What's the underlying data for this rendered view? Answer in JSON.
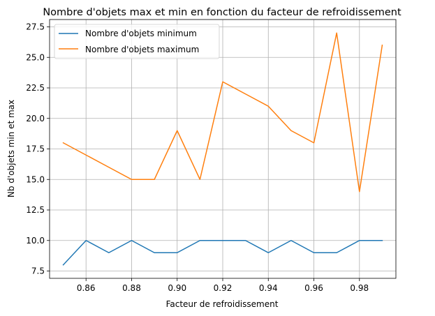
{
  "chart_data": {
    "type": "line",
    "title": "Nombre d'objets max et min en fonction du facteur de refroidissement",
    "xlabel": "Facteur de refroidissement",
    "ylabel": "Nb d'objets min et max",
    "x": [
      0.85,
      0.86,
      0.87,
      0.88,
      0.89,
      0.9,
      0.91,
      0.92,
      0.93,
      0.94,
      0.95,
      0.96,
      0.97,
      0.98,
      0.99
    ],
    "xlim": [
      0.844,
      0.996
    ],
    "ylim": [
      6.9,
      28.1
    ],
    "xticks": [
      0.86,
      0.88,
      0.9,
      0.92,
      0.94,
      0.96,
      0.98
    ],
    "xtick_labels": [
      "0.86",
      "0.88",
      "0.90",
      "0.92",
      "0.94",
      "0.96",
      "0.98"
    ],
    "yticks": [
      7.5,
      10.0,
      12.5,
      15.0,
      17.5,
      20.0,
      22.5,
      25.0,
      27.5
    ],
    "ytick_labels": [
      "7.5",
      "10.0",
      "12.5",
      "15.0",
      "17.5",
      "20.0",
      "22.5",
      "25.0",
      "27.5"
    ],
    "grid": true,
    "legend_position": "top-left",
    "series": [
      {
        "name": "Nombre d'objets minimum",
        "color": "#1f77b4",
        "values": [
          8,
          10,
          9,
          10,
          9,
          9,
          10,
          10,
          10,
          9,
          10,
          9,
          9,
          10,
          10
        ]
      },
      {
        "name": "Nombre d'objets maximum",
        "color": "#ff7f0e",
        "values": [
          18,
          17,
          16,
          15,
          15,
          19,
          15,
          23,
          22,
          21,
          19,
          18,
          27,
          14,
          26
        ]
      }
    ]
  }
}
